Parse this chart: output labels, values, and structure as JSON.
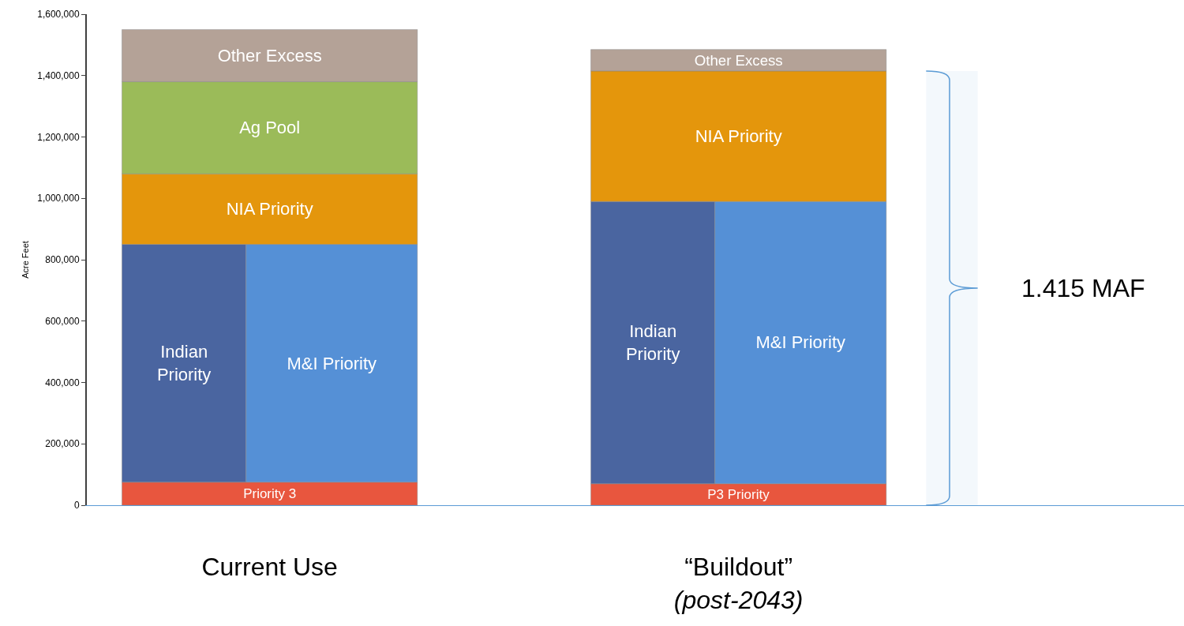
{
  "chart_data": {
    "type": "bar",
    "categories": [
      "Current Use",
      "“Buildout”\n(post-2043)"
    ],
    "ylabel": "Acre Feet",
    "series": [
      {
        "color": "#e8563e",
        "values": [
          75000,
          70000
        ],
        "base": [
          0,
          0
        ],
        "value_labels": [
          "Priority 3",
          "P3 Priority"
        ]
      },
      {
        "name": "Indian Priority",
        "color": "#4a65a0",
        "values": [
          775000,
          920000
        ],
        "base": [
          75000,
          70000
        ]
      },
      {
        "name": "M&I Priority",
        "color": "#5590d6",
        "values": [
          775000,
          920000
        ],
        "base": [
          75000,
          70000
        ]
      },
      {
        "name": "NIA Priority",
        "color": "#e4960c",
        "values": [
          230000,
          425000
        ],
        "base": [
          850000,
          990000
        ]
      },
      {
        "name": "Ag Pool",
        "color": "#9bbb59",
        "values": [
          300000,
          null
        ],
        "base": [
          1080000,
          null
        ]
      },
      {
        "name": "Other Excess",
        "color": "#b4a297",
        "values": [
          170000,
          70000
        ],
        "base": [
          1380000,
          1415000
        ]
      }
    ],
    "bands": [
      {
        "axis": "y",
        "from": 0,
        "to": 1415000,
        "label": "1.415 MAF",
        "color": "#5b9bd5"
      }
    ],
    "ylim": [
      0,
      1600000
    ],
    "yticks": [
      {
        "value": 0,
        "label": "0"
      },
      {
        "value": 200000,
        "label": "200,000"
      },
      {
        "value": 400000,
        "label": "400,000"
      },
      {
        "value": 600000,
        "label": "600,000"
      },
      {
        "value": 800000,
        "label": "800,000"
      },
      {
        "value": 1000000,
        "label": "1,000,000"
      },
      {
        "value": 1200000,
        "label": "1,200,000"
      },
      {
        "value": 1400000,
        "label": "1,400,000"
      },
      {
        "value": 1600000,
        "label": "1,600,000"
      }
    ],
    "grid": false,
    "legend": false
  }
}
